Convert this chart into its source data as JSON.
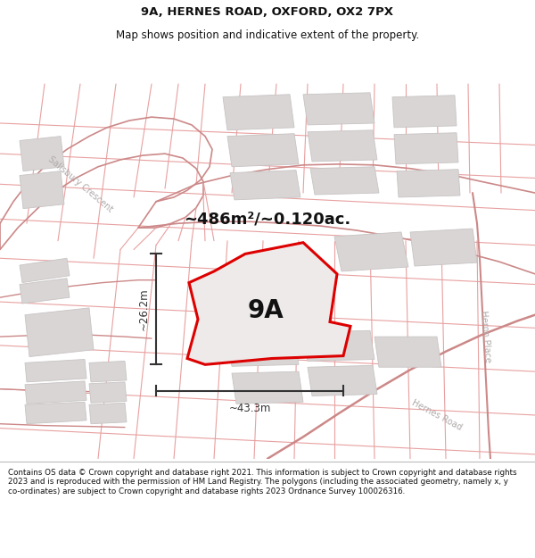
{
  "title": "9A, HERNES ROAD, OXFORD, OX2 7PX",
  "subtitle": "Map shows position and indicative extent of the property.",
  "footer": "Contains OS data © Crown copyright and database right 2021. This information is subject to Crown copyright and database rights 2023 and is reproduced with the permission of HM Land Registry. The polygons (including the associated geometry, namely x, y co-ordinates) are subject to Crown copyright and database rights 2023 Ordnance Survey 100026316.",
  "area_label": "~486m²/~0.120ac.",
  "plot_label": "9A",
  "dim_width": "~43.3m",
  "dim_height": "~26.2m",
  "map_bg": "#f7f5f5",
  "road_line_color": "#e8a0a0",
  "building_fill": "#d9d5d5",
  "building_stroke": "#c8c4c4",
  "plot_fill": "#e8e4e4",
  "plot_stroke": "#dd0000",
  "title_color": "#111111",
  "footer_color": "#111111",
  "label_color": "#111111",
  "road_label_color": "#b0aaaa",
  "dim_color": "#333333",
  "header_bg": "#ffffff",
  "footer_bg": "#ffffff"
}
